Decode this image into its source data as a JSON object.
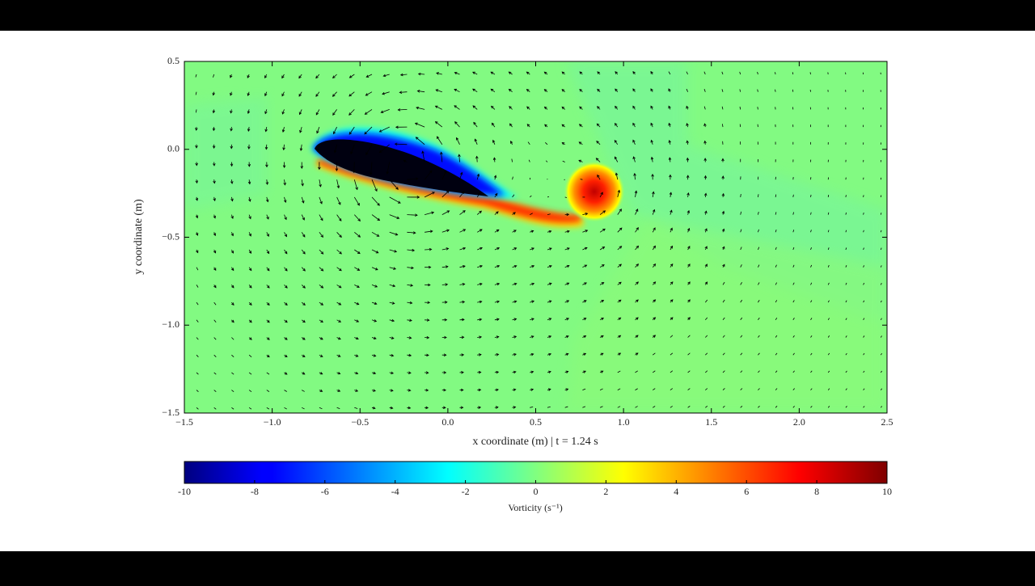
{
  "chart_data": {
    "type": "vorticity-field",
    "xlabel": "x coordinate (m) | t = 1.24 s",
    "ylabel": "y coordinate (m)",
    "xlim": [
      -1.5,
      2.5
    ],
    "ylim": [
      -1.5,
      0.5
    ],
    "xticks": [
      {
        "value": -1.5,
        "label": "−1.5"
      },
      {
        "value": -1,
        "label": "−1.0"
      },
      {
        "value": -0.5,
        "label": "−0.5"
      },
      {
        "value": 0,
        "label": "0.0"
      },
      0.5,
      {
        "value": 1,
        "label": "1.0"
      },
      1.5,
      {
        "value": 2,
        "label": "2.0"
      },
      2.5
    ],
    "yticks": [
      0.5,
      {
        "value": 0,
        "label": "0.0"
      },
      {
        "value": -0.5,
        "label": "−0.5"
      },
      {
        "value": -1,
        "label": "−1.0"
      },
      {
        "value": -1.5,
        "label": "−1.5"
      }
    ],
    "colormap": "jet",
    "colorbar": {
      "label": "Vorticity (s⁻¹)",
      "lim": [
        -10,
        10
      ],
      "ticks": [
        -10,
        -8,
        -6,
        -4,
        -2,
        0,
        2,
        4,
        6,
        8,
        10
      ]
    }
  }
}
